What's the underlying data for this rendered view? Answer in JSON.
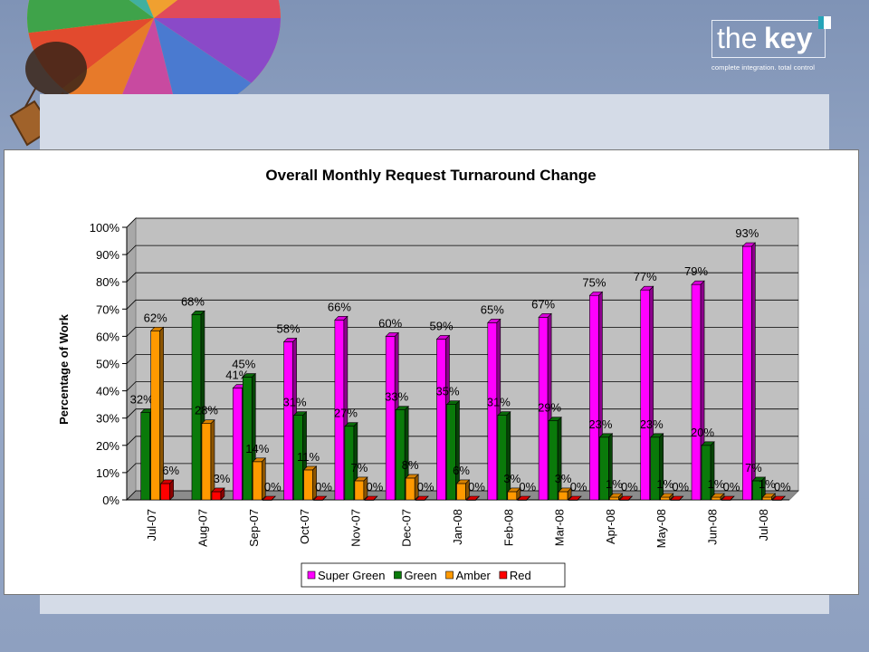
{
  "logo": {
    "word1": "the",
    "word2": "key",
    "tagline": "complete integration. total control"
  },
  "colors": {
    "super_green": "#ff00ff",
    "green": "#0a7a0a",
    "amber": "#ff9900",
    "red": "#ff0000",
    "plot_bg": "#c0c0c0"
  },
  "chart_data": {
    "type": "bar",
    "title": "Overall Monthly Request Turnaround Change",
    "xlabel": "",
    "ylabel": "Percentage of Work",
    "ylim": [
      0,
      100
    ],
    "yticks": [
      "0%",
      "10%",
      "20%",
      "30%",
      "40%",
      "50%",
      "60%",
      "70%",
      "80%",
      "90%",
      "100%"
    ],
    "grid": true,
    "legend_position": "bottom",
    "categories": [
      "Jul-07",
      "Aug-07",
      "Sep-07",
      "Oct-07",
      "Nov-07",
      "Dec-07",
      "Jan-08",
      "Feb-08",
      "Mar-08",
      "Apr-08",
      "May-08",
      "Jun-08",
      "Jul-08"
    ],
    "series": [
      {
        "name": "Super Green",
        "color": "#ff00ff",
        "values": [
          null,
          null,
          41,
          58,
          66,
          60,
          59,
          65,
          67,
          75,
          77,
          79,
          93
        ]
      },
      {
        "name": "Green",
        "color": "#0a7a0a",
        "values": [
          32,
          68,
          45,
          31,
          27,
          33,
          35,
          31,
          29,
          23,
          23,
          20,
          7
        ]
      },
      {
        "name": "Amber",
        "color": "#ff9900",
        "values": [
          62,
          28,
          14,
          11,
          7,
          8,
          6,
          3,
          3,
          1,
          1,
          1,
          1
        ]
      },
      {
        "name": "Red",
        "color": "#ff0000",
        "values": [
          6,
          3,
          0,
          0,
          0,
          0,
          0,
          0,
          0,
          0,
          0,
          0,
          0
        ]
      }
    ]
  }
}
